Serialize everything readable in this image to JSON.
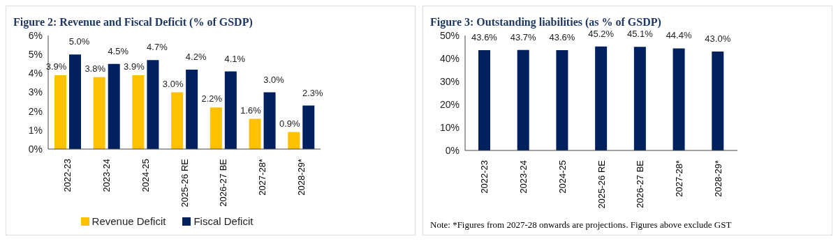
{
  "chart_data": [
    {
      "type": "bar",
      "title": "Figure 2: Revenue and Fiscal Deficit (% of GSDP)",
      "categories": [
        "2022-23",
        "2023-24",
        "2024-25",
        "2025-26 RE",
        "2026-27 BE",
        "2027-28*",
        "2028-29*"
      ],
      "series": [
        {
          "name": "Revenue Deficit",
          "color": "#ffc000",
          "values": [
            3.9,
            3.8,
            3.9,
            3.0,
            2.2,
            1.6,
            0.9
          ],
          "value_labels": [
            "3.9%",
            "3.8%",
            "3.9%",
            "3.0%",
            "2.2%",
            "1.6%",
            "0.9%"
          ]
        },
        {
          "name": "Fiscal Deficit",
          "color": "#002060",
          "values": [
            5.0,
            4.5,
            4.7,
            4.2,
            4.1,
            3.0,
            2.3
          ],
          "value_labels": [
            "5.0%",
            "4.5%",
            "4.7%",
            "4.2%",
            "4.1%",
            "3.0%",
            "2.3%"
          ]
        }
      ],
      "ylim": [
        0,
        6
      ],
      "yticks": [
        {
          "value": 0,
          "label": "0%"
        },
        {
          "value": 1,
          "label": "1%"
        },
        {
          "value": 2,
          "label": "2%"
        },
        {
          "value": 3,
          "label": "3%"
        },
        {
          "value": 4,
          "label": "4%"
        },
        {
          "value": 5,
          "label": "5%"
        },
        {
          "value": 6,
          "label": "6%"
        }
      ],
      "grid": false,
      "legend": "bottom"
    },
    {
      "type": "bar",
      "title": "Figure 3: Outstanding liabilities (as % of GSDP)",
      "categories": [
        "2022-23",
        "2023-24",
        "2024-25",
        "2025-26 RE",
        "2026-27 BE",
        "2027-28*",
        "2028-29*"
      ],
      "series": [
        {
          "color": "#002060",
          "values": [
            43.6,
            43.7,
            43.6,
            45.2,
            45.1,
            44.4,
            43.0
          ],
          "value_labels": [
            "43.6%",
            "43.7%",
            "43.6%",
            "45.2%",
            "45.1%",
            "44.4%",
            "43.0%"
          ]
        }
      ],
      "ylim": [
        0,
        50
      ],
      "yticks": [
        {
          "value": 0,
          "label": "0%"
        },
        {
          "value": 10,
          "label": "10%"
        },
        {
          "value": 20,
          "label": "20%"
        },
        {
          "value": 30,
          "label": "30%"
        },
        {
          "value": 40,
          "label": "40%"
        },
        {
          "value": 50,
          "label": "50%"
        }
      ],
      "grid": false,
      "legend": false,
      "annotations": [
        "Note: *Figures from 2027-28 onwards are projections.  Figures above exclude GST"
      ]
    }
  ]
}
